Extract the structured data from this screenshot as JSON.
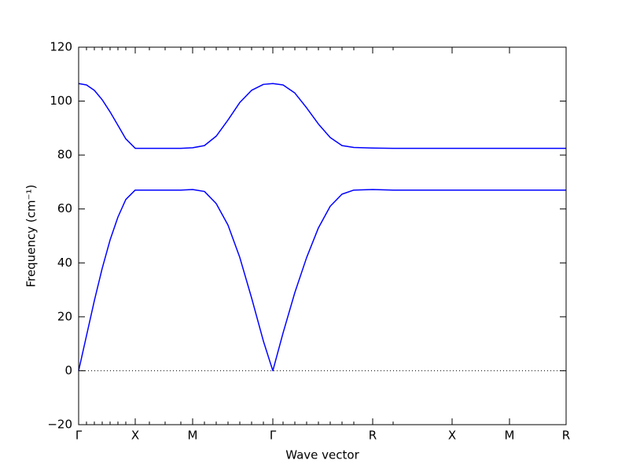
{
  "chart_data": {
    "type": "line",
    "xlabel": "Wave vector",
    "ylabel": "Frequency (cm⁻¹)",
    "x": [
      0,
      0.1,
      0.2,
      0.3,
      0.4,
      0.5,
      0.6,
      0.72,
      0.9,
      1.1,
      1.3,
      1.45,
      1.6,
      1.75,
      1.9,
      2.05,
      2.2,
      2.35,
      2.47,
      2.6,
      2.75,
      2.9,
      3.05,
      3.2,
      3.35,
      3.5,
      3.74,
      4.0,
      4.75,
      5.48,
      6.2
    ],
    "series": [
      {
        "color": "#0000ff",
        "values": [
          0,
          13,
          26,
          38,
          48.5,
          57,
          63.5,
          67,
          67,
          67,
          67,
          67.2,
          66.5,
          62,
          54,
          42,
          27,
          11,
          0,
          14,
          29,
          42,
          53,
          61,
          65.5,
          67,
          67.2,
          67,
          67,
          67,
          67
        ]
      },
      {
        "color": "#0000ff",
        "values": [
          106.5,
          106,
          104,
          100.5,
          96,
          91,
          86,
          82.5,
          82.5,
          82.5,
          82.5,
          82.7,
          83.5,
          87,
          93,
          99.5,
          104,
          106.2,
          106.5,
          106,
          103,
          97.5,
          91.5,
          86.5,
          83.5,
          82.8,
          82.6,
          82.5,
          82.5,
          82.5,
          82.5
        ]
      }
    ],
    "xlim": [
      0,
      6.2
    ],
    "xticks": [
      {
        "value": 0,
        "label": "Γ"
      },
      {
        "value": 0.72,
        "label": "X"
      },
      {
        "value": 1.45,
        "label": "M"
      },
      {
        "value": 2.47,
        "label": "Γ"
      },
      {
        "value": 3.74,
        "label": "R"
      },
      {
        "value": 4.75,
        "label": "X"
      },
      {
        "value": 5.48,
        "label": "M"
      },
      {
        "value": 6.2,
        "label": "R"
      }
    ],
    "ylim": [
      -20,
      120
    ],
    "yticks": [
      {
        "value": -20,
        "label": "−20"
      },
      0,
      20,
      40,
      60,
      80,
      100,
      120
    ],
    "zero_line": true
  }
}
